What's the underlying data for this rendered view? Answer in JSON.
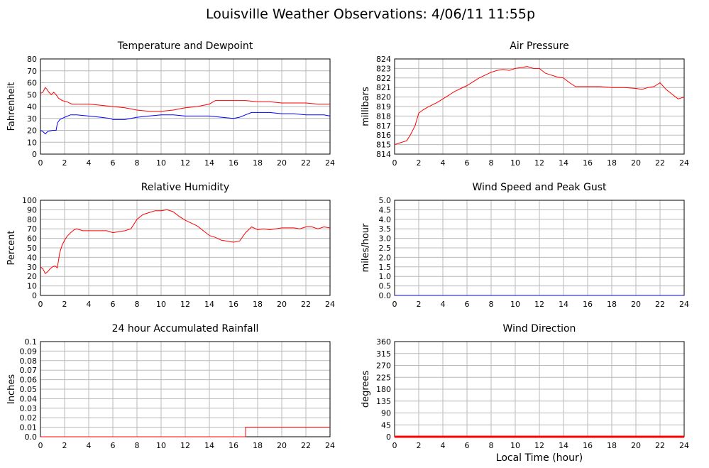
{
  "page": {
    "title": "Louisville Weather Observations: 4/06/11 11:55p",
    "x_axis_label": "Local Time (hour)"
  },
  "chart_data": [
    {
      "id": "temp",
      "type": "line",
      "title": "Temperature and Dewpoint",
      "ylabel": "Fahrenheit",
      "xlabel": "",
      "xlim": [
        0,
        24
      ],
      "ylim": [
        0,
        80
      ],
      "xticks": [
        "0",
        "2",
        "4",
        "6",
        "8",
        "10",
        "12",
        "14",
        "16",
        "18",
        "20",
        "22",
        "24"
      ],
      "yticks": [
        "0",
        "10",
        "20",
        "30",
        "40",
        "50",
        "60",
        "70",
        "80"
      ],
      "grid": true,
      "series": [
        {
          "color": "#ff0000",
          "x": [
            0,
            0.2,
            0.4,
            0.5,
            0.7,
            0.9,
            1.1,
            1.3,
            1.5,
            1.8,
            2.2,
            2.6,
            3,
            4,
            5,
            6,
            7,
            8,
            9,
            10,
            11,
            12,
            13,
            14,
            14.5,
            15,
            16,
            17,
            18,
            19,
            20,
            21,
            22,
            23,
            24
          ],
          "y": [
            51,
            52,
            56,
            55,
            52,
            50,
            52,
            50,
            47,
            45,
            44,
            42,
            42,
            42,
            41,
            40,
            39,
            37,
            36,
            36,
            37,
            39,
            40,
            42,
            45,
            45,
            45,
            45,
            44,
            44,
            43,
            43,
            43,
            42,
            42
          ]
        },
        {
          "color": "#0000ff",
          "x": [
            0,
            0.2,
            0.4,
            0.6,
            1,
            1.3,
            1.4,
            1.6,
            2,
            2.5,
            3,
            4,
            5,
            5.8,
            6,
            7,
            8,
            9,
            10,
            11,
            12,
            13,
            14,
            15,
            16,
            16.5,
            17,
            17.5,
            18,
            19,
            20,
            21,
            22,
            23,
            23.5,
            24
          ],
          "y": [
            20,
            19,
            17,
            19,
            20,
            20,
            26,
            29,
            31,
            33,
            33,
            32,
            31,
            30,
            29,
            29,
            31,
            32,
            33,
            33,
            32,
            32,
            32,
            31,
            30,
            31,
            33,
            35,
            35,
            35,
            34,
            34,
            33,
            33,
            33,
            32
          ]
        }
      ]
    },
    {
      "id": "pressure",
      "type": "line",
      "title": "Air Pressure",
      "ylabel": "millibars",
      "xlabel": "",
      "xlim": [
        0,
        24
      ],
      "ylim": [
        814,
        824
      ],
      "xticks": [
        "0",
        "2",
        "4",
        "6",
        "8",
        "10",
        "12",
        "14",
        "16",
        "18",
        "20",
        "22",
        "24"
      ],
      "yticks": [
        "814",
        "815",
        "816",
        "817",
        "818",
        "819",
        "820",
        "821",
        "822",
        "823",
        "824"
      ],
      "grid": true,
      "series": [
        {
          "color": "#ff0000",
          "x": [
            0,
            0.5,
            1,
            1.3,
            1.7,
            2,
            2.3,
            2.7,
            3,
            3.5,
            4,
            4.5,
            5,
            5.5,
            6,
            6.5,
            7,
            7.5,
            8,
            8.5,
            9,
            9.5,
            10,
            10.5,
            11,
            11.5,
            12,
            12.5,
            13,
            13.5,
            14,
            14.5,
            15,
            16,
            17,
            18,
            19,
            20,
            20.5,
            21,
            21.5,
            22,
            22.5,
            23,
            23.5,
            24
          ],
          "y": [
            815,
            815.2,
            815.4,
            816,
            817,
            818.3,
            818.6,
            818.9,
            819.1,
            819.4,
            819.8,
            820.2,
            820.6,
            820.9,
            821.2,
            821.6,
            822,
            822.3,
            822.6,
            822.8,
            822.9,
            822.8,
            823,
            823.1,
            823.2,
            823,
            823,
            822.5,
            822.3,
            822.1,
            822,
            821.5,
            821.1,
            821.1,
            821.1,
            821,
            821,
            820.9,
            820.8,
            821,
            821.1,
            821.5,
            820.8,
            820.3,
            819.8,
            820
          ]
        }
      ]
    },
    {
      "id": "humidity",
      "type": "line",
      "title": "Relative Humidity",
      "ylabel": "Percent",
      "xlabel": "",
      "xlim": [
        0,
        24
      ],
      "ylim": [
        0,
        100
      ],
      "xticks": [
        "0",
        "2",
        "4",
        "6",
        "8",
        "10",
        "12",
        "14",
        "16",
        "18",
        "20",
        "22",
        "24"
      ],
      "yticks": [
        "0",
        "10",
        "20",
        "30",
        "40",
        "50",
        "60",
        "70",
        "80",
        "90",
        "100"
      ],
      "grid": true,
      "series": [
        {
          "color": "#ff0000",
          "x": [
            0,
            0.2,
            0.4,
            0.6,
            0.8,
            1,
            1.2,
            1.4,
            1.6,
            1.8,
            2,
            2.2,
            2.5,
            2.8,
            3,
            3.5,
            4,
            4.5,
            5,
            5.5,
            6,
            6.5,
            7,
            7.5,
            8,
            8.5,
            9,
            9.5,
            10,
            10.5,
            11,
            11.5,
            12,
            12.5,
            13,
            13.5,
            14,
            14.5,
            15,
            15.5,
            16,
            16.5,
            17,
            17.5,
            18,
            18.5,
            19,
            19.5,
            20,
            20.5,
            21,
            21.5,
            22,
            22.5,
            23,
            23.5,
            24
          ],
          "y": [
            30,
            28,
            23,
            25,
            28,
            30,
            31,
            29,
            45,
            53,
            58,
            62,
            66,
            69,
            70,
            68,
            68,
            68,
            68,
            68,
            66,
            67,
            68,
            70,
            80,
            85,
            87,
            89,
            89,
            90,
            88,
            83,
            79,
            76,
            73,
            68,
            63,
            61,
            58,
            57,
            56,
            57,
            66,
            72,
            69,
            70,
            69,
            70,
            71,
            71,
            71,
            70,
            72,
            72,
            70,
            72,
            71
          ]
        }
      ]
    },
    {
      "id": "wind",
      "type": "line",
      "title": "Wind Speed and Peak Gust",
      "ylabel": "miles/hour",
      "xlabel": "",
      "xlim": [
        0,
        24
      ],
      "ylim": [
        0,
        5
      ],
      "xticks": [
        "0",
        "2",
        "4",
        "6",
        "8",
        "10",
        "12",
        "14",
        "16",
        "18",
        "20",
        "22",
        "24"
      ],
      "yticks": [
        "0.0",
        "0.5",
        "1.0",
        "1.5",
        "2.0",
        "2.5",
        "3.0",
        "3.5",
        "4.0",
        "4.5",
        "5.0"
      ],
      "grid": true,
      "series": [
        {
          "color": "#ff0000",
          "x": [
            0,
            24
          ],
          "y": [
            0,
            0
          ]
        },
        {
          "color": "#0000ff",
          "x": [
            0,
            24
          ],
          "y": [
            0,
            0
          ]
        }
      ]
    },
    {
      "id": "rain",
      "type": "line",
      "title": "24 hour Accumulated Rainfall",
      "ylabel": "Inches",
      "xlabel": "",
      "xlim": [
        0,
        24
      ],
      "ylim": [
        0,
        0.1
      ],
      "xticks": [
        "0",
        "2",
        "4",
        "6",
        "8",
        "10",
        "12",
        "14",
        "16",
        "18",
        "20",
        "22",
        "24"
      ],
      "yticks": [
        "0.0",
        "0.01",
        "0.02",
        "0.03",
        "0.04",
        "0.05",
        "0.06",
        "0.07",
        "0.08",
        "0.09",
        "0.1"
      ],
      "grid": true,
      "series": [
        {
          "color": "#ff0000",
          "x": [
            0,
            17,
            17,
            24
          ],
          "y": [
            0,
            0,
            0.01,
            0.01
          ]
        }
      ]
    },
    {
      "id": "direction",
      "type": "line",
      "title": "Wind Direction",
      "ylabel": "degrees",
      "xlabel": "",
      "xlim": [
        0,
        24
      ],
      "ylim": [
        0,
        360
      ],
      "xticks": [
        "0",
        "2",
        "4",
        "6",
        "8",
        "10",
        "12",
        "14",
        "16",
        "18",
        "20",
        "22",
        "24"
      ],
      "yticks": [
        "0",
        "45",
        "90",
        "135",
        "180",
        "225",
        "270",
        "315",
        "360"
      ],
      "grid": true,
      "series": [
        {
          "color": "#ff0000",
          "x": [
            0,
            24
          ],
          "y": [
            0,
            0
          ],
          "bold": true
        }
      ]
    }
  ]
}
